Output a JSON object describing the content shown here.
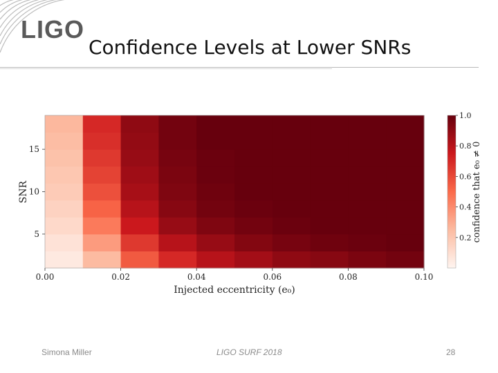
{
  "header": {
    "logo_text": "LIGO",
    "title": "Confidence Levels at Lower SNRs"
  },
  "chart_data": {
    "type": "heatmap",
    "xlabel": "Injected eccentricity (e₀)",
    "ylabel": "SNR",
    "colorbar_label": "confidence that e₀ ≠ 0",
    "xlim": [
      0.0,
      0.1
    ],
    "ylim": [
      1,
      19
    ],
    "xticks": [
      "0.00",
      "0.02",
      "0.04",
      "0.06",
      "0.08",
      "0.10"
    ],
    "yticks": [
      "5",
      "10",
      "15"
    ],
    "colorbar_ticks": [
      "0.2",
      "0.4",
      "0.6",
      "0.8",
      "1.0"
    ],
    "clim": [
      0.0,
      1.0
    ],
    "colormap": "Reds",
    "x": [
      0.005,
      0.015,
      0.025,
      0.035,
      0.045,
      0.055,
      0.065,
      0.075,
      0.085,
      0.095
    ],
    "y": [
      2,
      4,
      6,
      8,
      10,
      12,
      14,
      16,
      18
    ],
    "z": [
      [
        0.05,
        0.25,
        0.55,
        0.7,
        0.8,
        0.85,
        0.9,
        0.92,
        0.95,
        0.97
      ],
      [
        0.08,
        0.35,
        0.65,
        0.8,
        0.88,
        0.93,
        0.96,
        0.98,
        0.99,
        1.0
      ],
      [
        0.12,
        0.45,
        0.75,
        0.88,
        0.94,
        0.97,
        0.99,
        1.0,
        1.0,
        1.0
      ],
      [
        0.15,
        0.52,
        0.8,
        0.92,
        0.97,
        0.99,
        1.0,
        1.0,
        1.0,
        1.0
      ],
      [
        0.18,
        0.58,
        0.84,
        0.94,
        0.98,
        1.0,
        1.0,
        1.0,
        1.0,
        1.0
      ],
      [
        0.2,
        0.62,
        0.86,
        0.95,
        0.99,
        1.0,
        1.0,
        1.0,
        1.0,
        1.0
      ],
      [
        0.22,
        0.65,
        0.88,
        0.96,
        0.99,
        1.0,
        1.0,
        1.0,
        1.0,
        1.0
      ],
      [
        0.24,
        0.68,
        0.89,
        0.97,
        1.0,
        1.0,
        1.0,
        1.0,
        1.0,
        1.0
      ],
      [
        0.26,
        0.7,
        0.9,
        0.97,
        1.0,
        1.0,
        1.0,
        1.0,
        1.0,
        1.0
      ]
    ]
  },
  "footer": {
    "author": "Simona Miller",
    "event": "LIGO SURF 2018",
    "page": "28"
  },
  "colors": {
    "low": "#fff5f0",
    "mid": "#ef3b2c",
    "high": "#67000d",
    "footer_text": "#8a8a8a"
  }
}
